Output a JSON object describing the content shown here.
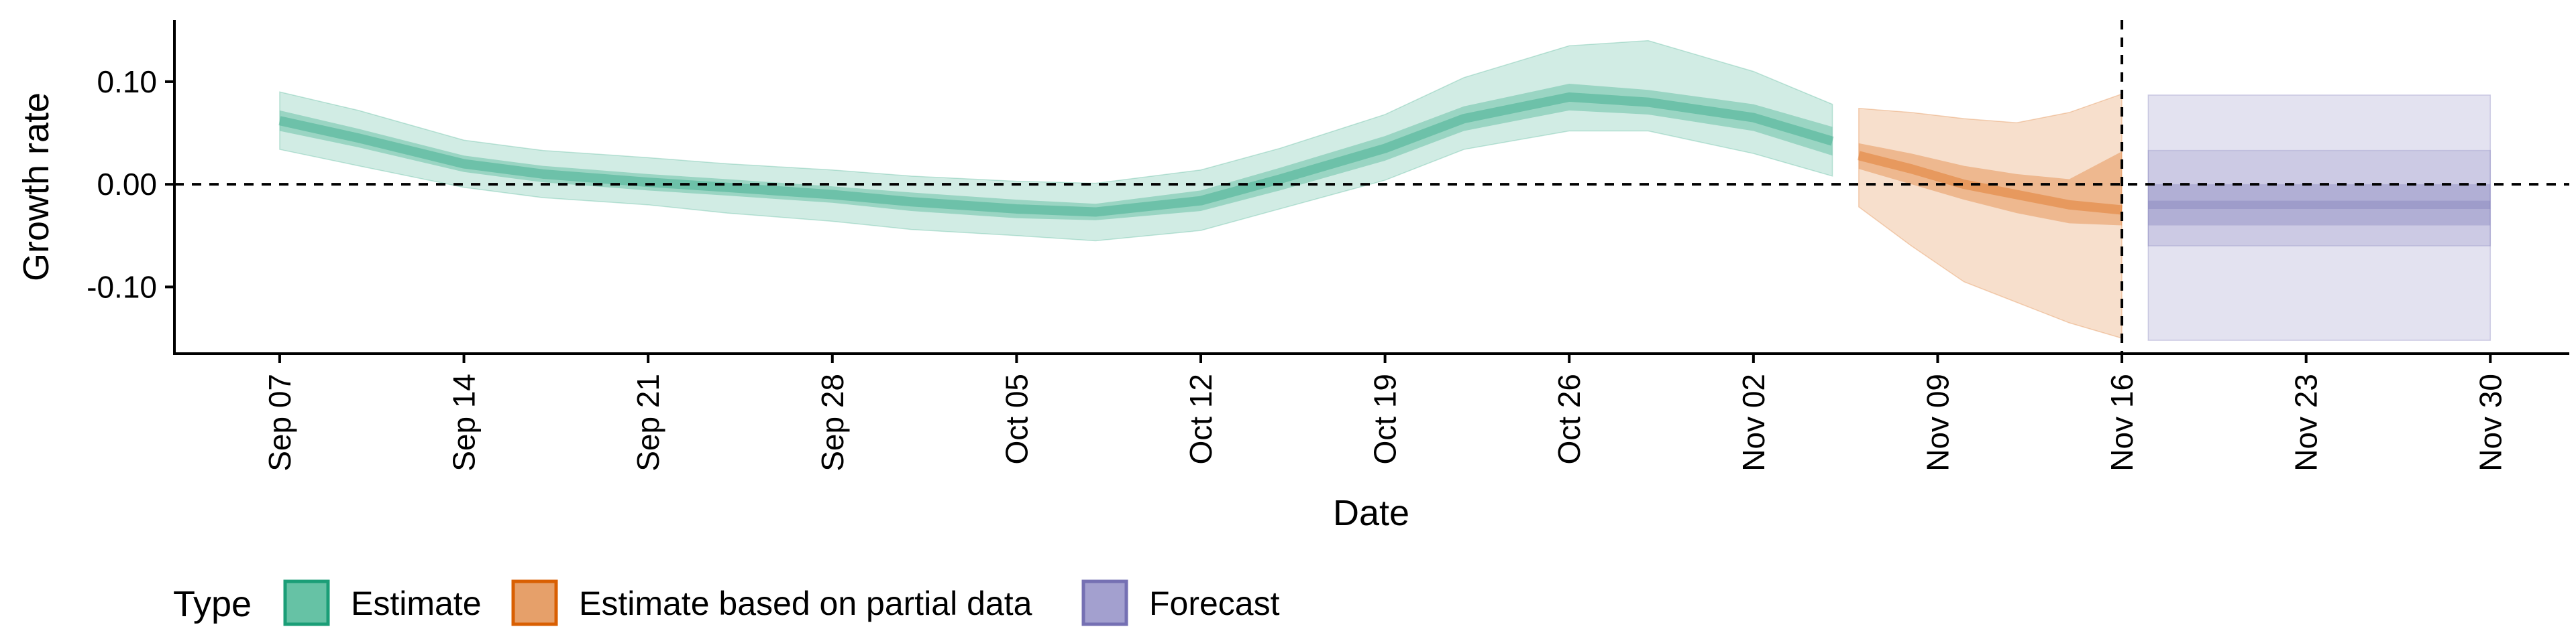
{
  "chart_data": {
    "type": "area",
    "title": "",
    "xlabel": "Date",
    "ylabel": "Growth rate",
    "x_ticks": [
      {
        "date": "2020-09-07",
        "label": "Sep 07"
      },
      {
        "date": "2020-09-14",
        "label": "Sep 14"
      },
      {
        "date": "2020-09-21",
        "label": "Sep 21"
      },
      {
        "date": "2020-09-28",
        "label": "Sep 28"
      },
      {
        "date": "2020-10-05",
        "label": "Oct 05"
      },
      {
        "date": "2020-10-12",
        "label": "Oct 12"
      },
      {
        "date": "2020-10-19",
        "label": "Oct 19"
      },
      {
        "date": "2020-10-26",
        "label": "Oct 26"
      },
      {
        "date": "2020-11-02",
        "label": "Nov 02"
      },
      {
        "date": "2020-11-09",
        "label": "Nov 09"
      },
      {
        "date": "2020-11-16",
        "label": "Nov 16"
      },
      {
        "date": "2020-11-23",
        "label": "Nov 23"
      },
      {
        "date": "2020-11-30",
        "label": "Nov 30"
      }
    ],
    "y_ticks": [
      {
        "value": 0.1,
        "label": "0.10"
      },
      {
        "value": 0.0,
        "label": "0.00"
      },
      {
        "value": -0.1,
        "label": "-0.10"
      }
    ],
    "xlim": [
      "2020-09-03",
      "2020-12-03"
    ],
    "ylim": [
      -0.165,
      0.16
    ],
    "hlines": [
      0
    ],
    "vlines": [
      "2020-11-16"
    ],
    "grid": false,
    "legend": {
      "title": "Type",
      "position": "bottom-left",
      "items": [
        {
          "label": "Estimate",
          "fill": "#66c2a5",
          "border": "#1b9e77"
        },
        {
          "label": "Estimate based on partial data",
          "fill": "#e6a06a",
          "border": "#d95f02"
        },
        {
          "label": "Forecast",
          "fill": "#a3a0cf",
          "border": "#7570b3"
        }
      ]
    },
    "colors": {
      "estimate": "#1b9e77",
      "partial": "#d95f02",
      "forecast": "#7570b3"
    },
    "series": [
      {
        "name": "Estimate",
        "color": "#1b9e77",
        "x": [
          "2020-09-07",
          "2020-09-10",
          "2020-09-14",
          "2020-09-17",
          "2020-09-21",
          "2020-09-24",
          "2020-09-28",
          "2020-10-01",
          "2020-10-05",
          "2020-10-08",
          "2020-10-12",
          "2020-10-15",
          "2020-10-19",
          "2020-10-22",
          "2020-10-26",
          "2020-10-29",
          "2020-11-02",
          "2020-11-05"
        ],
        "median": [
          0.062,
          0.045,
          0.02,
          0.01,
          0.002,
          -0.003,
          -0.01,
          -0.017,
          -0.024,
          -0.027,
          -0.016,
          0.005,
          0.035,
          0.064,
          0.085,
          0.08,
          0.065,
          0.042
        ],
        "inner_lower": [
          0.052,
          0.036,
          0.012,
          0.002,
          -0.006,
          -0.011,
          -0.018,
          -0.026,
          -0.033,
          -0.035,
          -0.026,
          -0.006,
          0.023,
          0.052,
          0.072,
          0.068,
          0.052,
          0.028
        ],
        "inner_upper": [
          0.072,
          0.054,
          0.028,
          0.018,
          0.01,
          0.005,
          -0.002,
          -0.008,
          -0.015,
          -0.019,
          -0.006,
          0.016,
          0.047,
          0.076,
          0.098,
          0.092,
          0.078,
          0.056
        ],
        "lower": [
          0.034,
          0.018,
          -0.003,
          -0.013,
          -0.02,
          -0.028,
          -0.036,
          -0.044,
          -0.05,
          -0.055,
          -0.045,
          -0.024,
          0.004,
          0.034,
          0.052,
          0.052,
          0.03,
          0.008
        ],
        "upper": [
          0.09,
          0.072,
          0.043,
          0.033,
          0.026,
          0.02,
          0.014,
          0.008,
          0.003,
          0.001,
          0.014,
          0.035,
          0.068,
          0.104,
          0.135,
          0.14,
          0.11,
          0.078
        ]
      },
      {
        "name": "Estimate based on partial data",
        "color": "#d95f02",
        "x": [
          "2020-11-06",
          "2020-11-08",
          "2020-11-10",
          "2020-11-12",
          "2020-11-14",
          "2020-11-16"
        ],
        "median": [
          0.028,
          0.015,
          0.0,
          -0.01,
          -0.02,
          -0.025
        ],
        "inner_lower": [
          0.015,
          0.0,
          -0.015,
          -0.028,
          -0.038,
          -0.04
        ],
        "inner_upper": [
          0.04,
          0.03,
          0.018,
          0.01,
          0.005,
          0.032
        ],
        "lower": [
          -0.022,
          -0.06,
          -0.095,
          -0.115,
          -0.135,
          -0.15
        ],
        "upper": [
          0.074,
          0.07,
          0.064,
          0.06,
          0.07,
          0.088
        ]
      },
      {
        "name": "Forecast",
        "color": "#7570b3",
        "x": [
          "2020-11-17",
          "2020-11-30"
        ],
        "median": [
          -0.02,
          -0.02
        ],
        "inner_lower": [
          -0.04,
          -0.04
        ],
        "inner_upper": [
          0.0,
          0.0
        ],
        "lower": [
          -0.06,
          -0.06
        ],
        "upper": [
          0.033,
          0.033
        ],
        "outer_lower": [
          -0.152,
          -0.152
        ],
        "outer_upper": [
          0.087,
          0.087
        ]
      }
    ]
  }
}
